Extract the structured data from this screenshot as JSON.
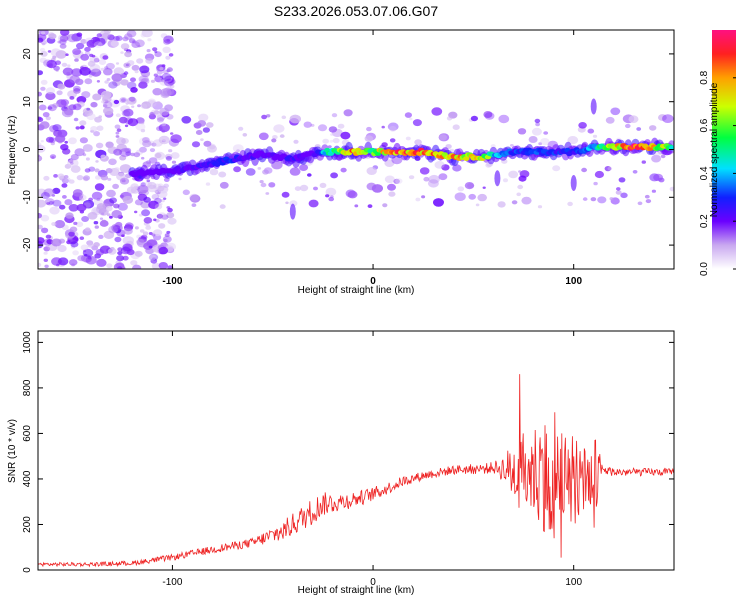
{
  "title": "S233.2026.053.07.06.G07",
  "chart_data": [
    {
      "type": "heatmap",
      "name": "spectrogram",
      "xlabel": "Height of straight line (km)",
      "ylabel": "Frequency (Hz)",
      "xlim": [
        -167,
        150
      ],
      "ylim": [
        -25,
        25
      ],
      "xticks": [
        -100,
        0,
        100
      ],
      "yticks": [
        -20,
        -10,
        0,
        10,
        20
      ],
      "colorbar": {
        "label": "Normalized spectral amplitude",
        "range": [
          0,
          1
        ],
        "ticks": [
          0.0,
          0.2,
          0.4,
          0.6,
          0.8
        ],
        "tick_labels": [
          "0.0",
          "0.2",
          "0.4",
          "0.6",
          "0.8"
        ],
        "colormap": "rainbow"
      },
      "ridge": {
        "x": [
          -118,
          -100,
          -85,
          -70,
          -55,
          -40,
          -30,
          -22,
          -10,
          0,
          10,
          25,
          40,
          55,
          62,
          70,
          80,
          90,
          100,
          110,
          130,
          150
        ],
        "freq": [
          -5,
          -4.5,
          -3.5,
          -2,
          -1,
          -2,
          -1,
          -0.5,
          -0.5,
          -0.5,
          -0.5,
          -0.5,
          -1.5,
          -1.5,
          -1,
          -0.5,
          -0.5,
          -0.5,
          -0.5,
          0.5,
          0.5,
          0.5
        ],
        "amplitude": [
          0.15,
          0.2,
          0.25,
          0.3,
          0.2,
          0.25,
          0.2,
          0.5,
          0.85,
          0.6,
          0.9,
          0.85,
          0.8,
          0.75,
          0.4,
          0.3,
          0.35,
          0.3,
          0.3,
          0.45,
          0.95,
          0.55
        ]
      }
    },
    {
      "type": "line",
      "name": "snr",
      "xlabel": "Height of straight line (km)",
      "ylabel": "SNR (10 * v/v)",
      "xlim": [
        -167,
        150
      ],
      "ylim": [
        0,
        1050
      ],
      "xticks": [
        -100,
        0,
        100
      ],
      "yticks": [
        0,
        200,
        400,
        600,
        800,
        1000
      ],
      "color": "#ee2222",
      "envelope": {
        "x": [
          -167,
          -140,
          -120,
          -100,
          -80,
          -60,
          -45,
          -35,
          -25,
          -15,
          -5,
          5,
          15,
          25,
          40,
          55,
          60,
          65,
          70,
          80,
          90,
          100,
          110,
          115,
          120,
          130,
          140,
          150
        ],
        "y": [
          25,
          25,
          30,
          55,
          90,
          120,
          170,
          230,
          290,
          300,
          320,
          350,
          390,
          415,
          440,
          445,
          450,
          445,
          430,
          430,
          430,
          430,
          410,
          440,
          430,
          430,
          430,
          430
        ]
      },
      "noise": {
        "x": [
          -167,
          -120,
          -60,
          -45,
          -30,
          -20,
          -10,
          0,
          20,
          40,
          60,
          65,
          70,
          80,
          90,
          100,
          110,
          115,
          150
        ],
        "amplitude": [
          8,
          10,
          20,
          45,
          60,
          45,
          35,
          30,
          20,
          20,
          25,
          60,
          140,
          220,
          300,
          240,
          200,
          20,
          15
        ]
      }
    }
  ]
}
